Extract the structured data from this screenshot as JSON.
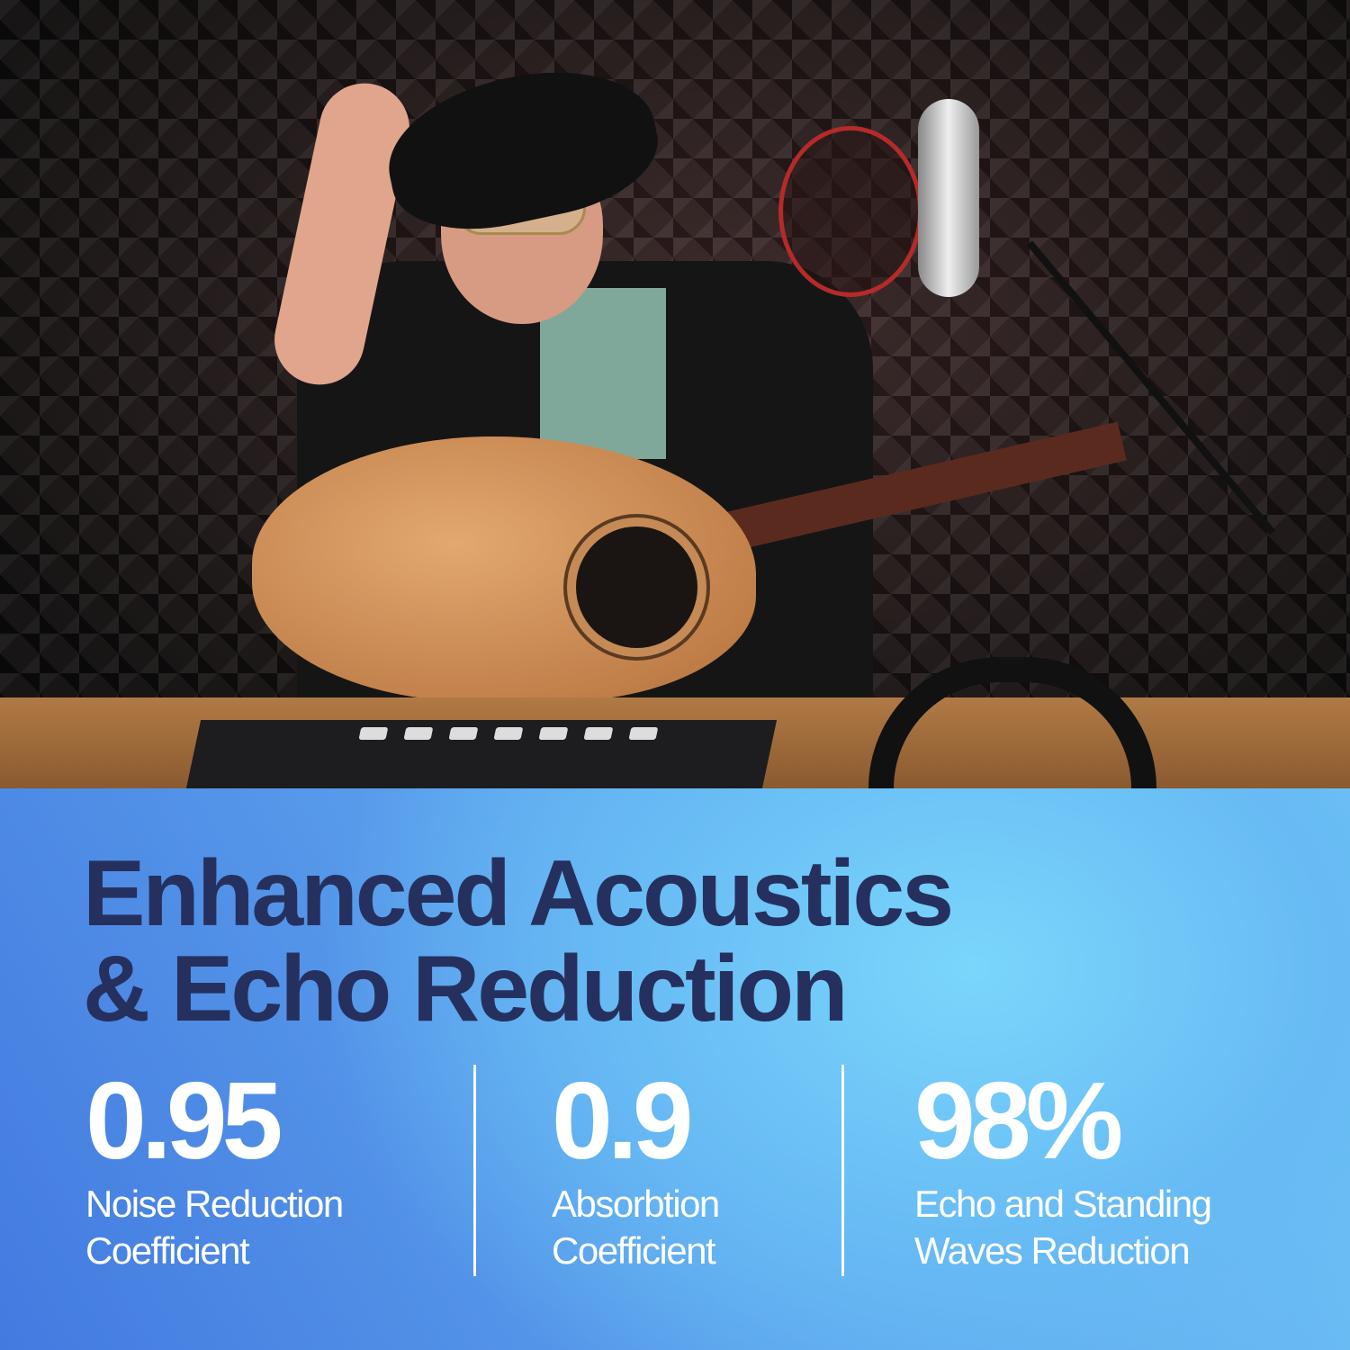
{
  "headline": {
    "line1": "Enhanced Acoustics",
    "line2": "& Echo Reduction"
  },
  "stats": [
    {
      "value": "0.95",
      "label_line1": "Noise Reduction",
      "label_line2": "Coefficient"
    },
    {
      "value": "0.9",
      "label_line1": "Absorbtion",
      "label_line2": "Coefficient"
    },
    {
      "value": "98%",
      "label_line1": "Echo and Standing",
      "label_line2": "Waves Reduction"
    }
  ],
  "colors": {
    "headline": "#26305e",
    "stat_text": "#ffffff",
    "panel_gradient_start": "#437ae0",
    "panel_gradient_end": "#7ad6fb"
  }
}
